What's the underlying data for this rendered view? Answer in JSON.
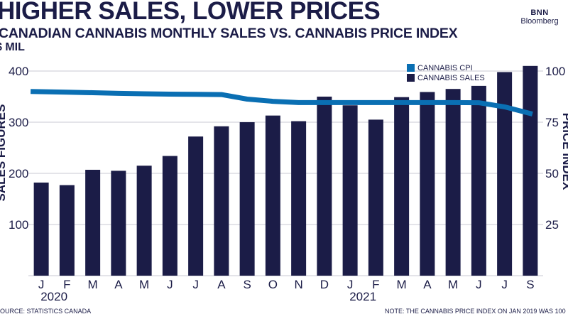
{
  "header": {
    "title": "HIGHER SALES, LOWER PRICES",
    "subtitle": "CANADIAN CANNABIS MONTHLY SALES VS. CANNABIS PRICE INDEX",
    "unit": "$ MIL"
  },
  "logo": {
    "line1": "BNN",
    "line2": "Bloomberg"
  },
  "footer": {
    "source": "SOURCE: STATISTICS CANADA",
    "note": "NOTE: THE CANNABIS PRICE INDEX ON JAN 2019 WAS 100"
  },
  "colors": {
    "bars": "#1b1c47",
    "line": "#0a6fb3",
    "grid": "#c9cad3",
    "text": "#1b1c47"
  },
  "chart_data": {
    "type": "bar",
    "categories": [
      "J",
      "F",
      "M",
      "A",
      "M",
      "J",
      "J",
      "A",
      "S",
      "O",
      "N",
      "D",
      "J",
      "F",
      "M",
      "A",
      "M",
      "J",
      "J",
      "S"
    ],
    "year_labels": [
      {
        "label": "2020",
        "index": 0
      },
      {
        "label": "2021",
        "index": 12
      }
    ],
    "series": [
      {
        "name": "CANNABIS SALES",
        "type": "bar",
        "axis": "left",
        "values": [
          182,
          177,
          207,
          205,
          215,
          234,
          272,
          292,
          300,
          313,
          302,
          350,
          333,
          305,
          349,
          359,
          365,
          371,
          398,
          410
        ]
      },
      {
        "name": "CANNABIS CPI",
        "type": "line",
        "axis": "right",
        "values": [
          90,
          89.7,
          89.4,
          89.1,
          88.9,
          88.7,
          88.6,
          88.5,
          86.3,
          85.2,
          84.6,
          84.6,
          84.6,
          84.6,
          84.6,
          84.6,
          84.6,
          84.5,
          82.5,
          79
        ]
      }
    ],
    "ylabel": "SALES FIGURES",
    "ylabel_right": "PRICE INDEX",
    "ylim": [
      0,
      400
    ],
    "ylim_right": [
      0,
      100
    ],
    "yticks": [
      100,
      200,
      300,
      400
    ],
    "yticks_right": [
      25,
      50,
      75,
      100
    ],
    "legend": "top-right",
    "grid": true
  }
}
